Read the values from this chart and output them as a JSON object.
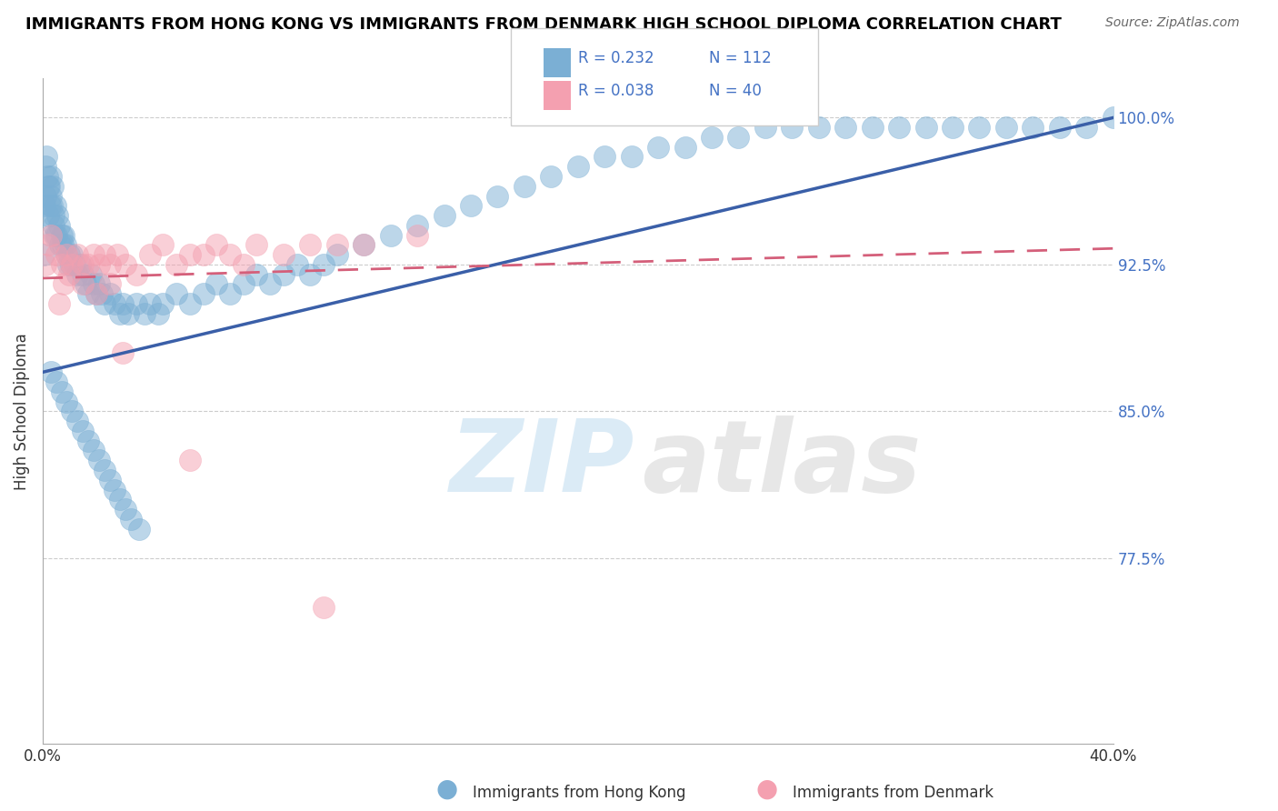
{
  "title": "IMMIGRANTS FROM HONG KONG VS IMMIGRANTS FROM DENMARK HIGH SCHOOL DIPLOMA CORRELATION CHART",
  "source": "Source: ZipAtlas.com",
  "ylabel": "High School Diploma",
  "legend_r_hk": "R = 0.232",
  "legend_n_hk": "N = 112",
  "legend_r_dk": "R = 0.038",
  "legend_n_dk": "N = 40",
  "hk_color": "#7bafd4",
  "dk_color": "#f4a0b0",
  "hk_line_color": "#3a5fa8",
  "dk_line_color": "#d45f7a",
  "watermark_zip": "ZIP",
  "watermark_atlas": "atlas",
  "hk_x": [
    0.05,
    0.08,
    0.1,
    0.12,
    0.15,
    0.18,
    0.2,
    0.22,
    0.25,
    0.28,
    0.3,
    0.32,
    0.35,
    0.38,
    0.4,
    0.42,
    0.45,
    0.48,
    0.5,
    0.55,
    0.6,
    0.65,
    0.7,
    0.75,
    0.8,
    0.85,
    0.9,
    0.95,
    1.0,
    1.05,
    1.1,
    1.2,
    1.3,
    1.4,
    1.5,
    1.6,
    1.7,
    1.8,
    1.9,
    2.0,
    2.1,
    2.2,
    2.3,
    2.5,
    2.7,
    2.9,
    3.0,
    3.2,
    3.5,
    3.8,
    4.0,
    4.3,
    4.5,
    5.0,
    5.5,
    6.0,
    6.5,
    7.0,
    7.5,
    8.0,
    8.5,
    9.0,
    9.5,
    10.0,
    10.5,
    11.0,
    12.0,
    13.0,
    14.0,
    15.0,
    16.0,
    17.0,
    18.0,
    19.0,
    20.0,
    21.0,
    22.0,
    23.0,
    24.0,
    25.0,
    26.0,
    27.0,
    28.0,
    29.0,
    30.0,
    31.0,
    32.0,
    33.0,
    34.0,
    35.0,
    36.0,
    37.0,
    38.0,
    39.0,
    40.0,
    0.3,
    0.5,
    0.7,
    0.9,
    1.1,
    1.3,
    1.5,
    1.7,
    1.9,
    2.1,
    2.3,
    2.5,
    2.7,
    2.9,
    3.1,
    3.3,
    3.6
  ],
  "hk_y": [
    93.0,
    95.5,
    97.5,
    96.0,
    98.0,
    97.0,
    96.5,
    95.0,
    96.5,
    95.5,
    97.0,
    96.0,
    95.5,
    96.5,
    94.5,
    95.0,
    94.0,
    95.5,
    94.0,
    95.0,
    94.5,
    93.5,
    94.0,
    93.5,
    94.0,
    93.5,
    93.0,
    92.5,
    93.0,
    92.5,
    93.0,
    92.5,
    92.0,
    92.5,
    92.0,
    91.5,
    91.0,
    92.0,
    91.5,
    91.0,
    91.5,
    91.0,
    90.5,
    91.0,
    90.5,
    90.0,
    90.5,
    90.0,
    90.5,
    90.0,
    90.5,
    90.0,
    90.5,
    91.0,
    90.5,
    91.0,
    91.5,
    91.0,
    91.5,
    92.0,
    91.5,
    92.0,
    92.5,
    92.0,
    92.5,
    93.0,
    93.5,
    94.0,
    94.5,
    95.0,
    95.5,
    96.0,
    96.5,
    97.0,
    97.5,
    98.0,
    98.0,
    98.5,
    98.5,
    99.0,
    99.0,
    99.5,
    99.5,
    99.5,
    99.5,
    99.5,
    99.5,
    99.5,
    99.5,
    99.5,
    99.5,
    99.5,
    99.5,
    99.5,
    100.0,
    87.0,
    86.5,
    86.0,
    85.5,
    85.0,
    84.5,
    84.0,
    83.5,
    83.0,
    82.5,
    82.0,
    81.5,
    81.0,
    80.5,
    80.0,
    79.5,
    79.0
  ],
  "dk_x": [
    0.1,
    0.2,
    0.3,
    0.5,
    0.7,
    0.9,
    1.1,
    1.3,
    1.5,
    1.7,
    1.9,
    2.1,
    2.3,
    2.5,
    2.8,
    3.1,
    3.5,
    4.0,
    4.5,
    5.0,
    5.5,
    6.0,
    6.5,
    7.0,
    8.0,
    9.0,
    10.0,
    11.0,
    12.0,
    14.0,
    5.5,
    10.5,
    3.0,
    2.0,
    1.0,
    0.8,
    0.6,
    1.5,
    2.5,
    7.5
  ],
  "dk_y": [
    92.5,
    93.5,
    94.0,
    93.0,
    92.5,
    93.0,
    92.5,
    93.0,
    92.5,
    92.5,
    93.0,
    92.5,
    93.0,
    92.5,
    93.0,
    92.5,
    92.0,
    93.0,
    93.5,
    92.5,
    93.0,
    93.0,
    93.5,
    93.0,
    93.5,
    93.0,
    93.5,
    93.5,
    93.5,
    94.0,
    82.5,
    75.0,
    88.0,
    91.0,
    92.0,
    91.5,
    90.5,
    91.5,
    91.5,
    92.5
  ]
}
